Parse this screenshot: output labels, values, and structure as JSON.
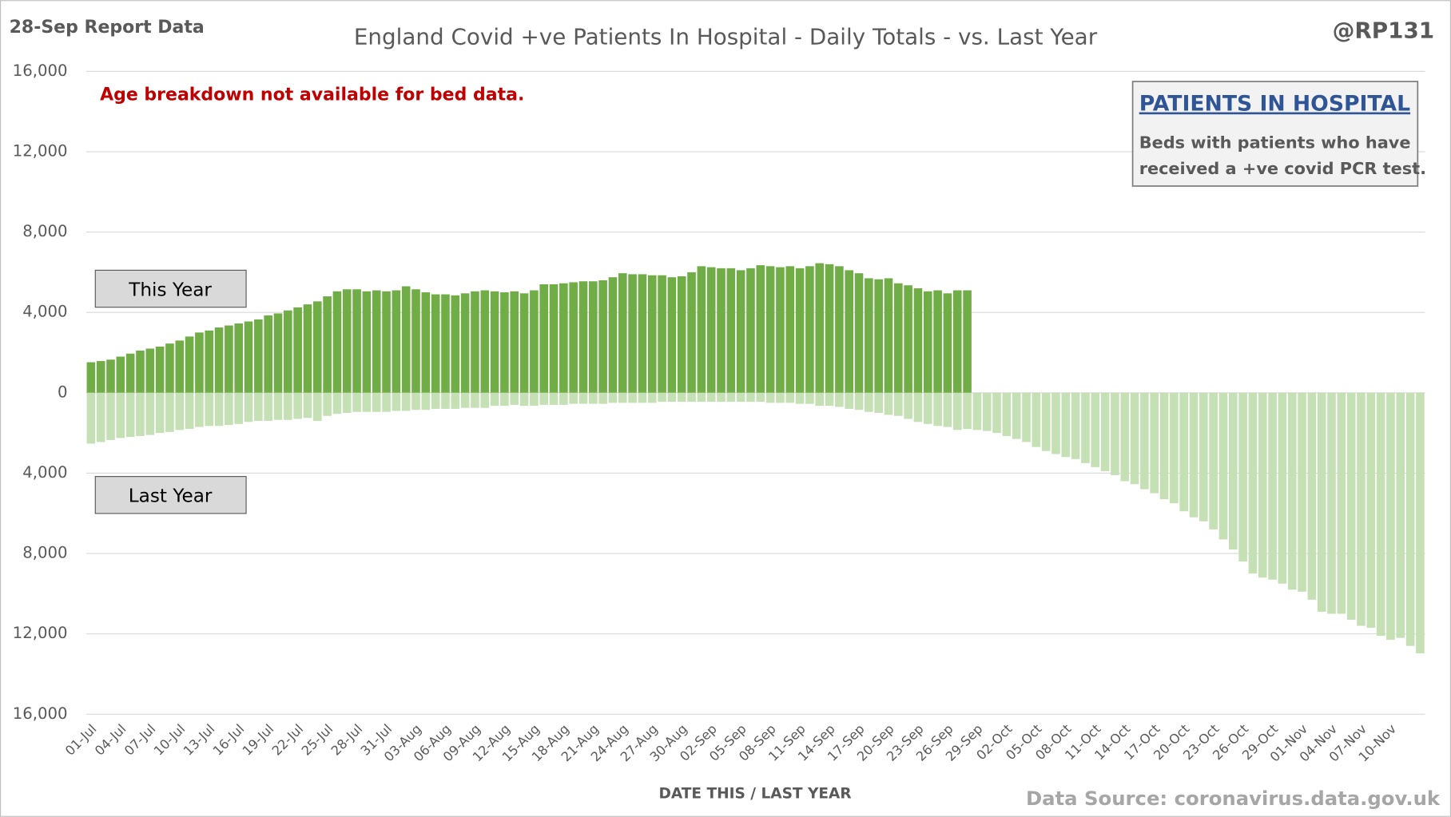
{
  "chart_data": {
    "type": "bar",
    "report_label": "28-Sep Report Data",
    "title": "England Covid +ve Patients In Hospital - Daily Totals - vs. Last Year",
    "handle": "@RP131",
    "annotation": "Age breakdown not available for bed data.",
    "info_box": {
      "heading": "PATIENTS IN HOSPITAL",
      "lines": [
        "Beds with patients who have",
        "received a +ve covid PCR test."
      ]
    },
    "x_label": "DATE THIS / LAST YEAR",
    "source": "Data Source: coronavirus.data.gov.uk",
    "categories": [
      "01-Jul",
      null,
      null,
      "04-Jul",
      null,
      null,
      "07-Jul",
      null,
      null,
      "10-Jul",
      null,
      null,
      "13-Jul",
      null,
      null,
      "16-Jul",
      null,
      null,
      "19-Jul",
      null,
      null,
      "22-Jul",
      null,
      null,
      "25-Jul",
      null,
      null,
      "28-Jul",
      null,
      null,
      "31-Jul",
      null,
      null,
      "03-Aug",
      null,
      null,
      "06-Aug",
      null,
      null,
      "09-Aug",
      null,
      null,
      "12-Aug",
      null,
      null,
      "15-Aug",
      null,
      null,
      "18-Aug",
      null,
      null,
      "21-Aug",
      null,
      null,
      "24-Aug",
      null,
      null,
      "27-Aug",
      null,
      null,
      "30-Aug",
      null,
      null,
      "02-Sep",
      null,
      null,
      "05-Sep",
      null,
      null,
      "08-Sep",
      null,
      null,
      "11-Sep",
      null,
      null,
      "14-Sep",
      null,
      null,
      "17-Sep",
      null,
      null,
      "20-Sep",
      null,
      null,
      "23-Sep",
      null,
      null,
      "26-Sep",
      null,
      null,
      "29-Sep",
      null,
      null,
      "02-Oct",
      null,
      null,
      "05-Oct",
      null,
      null,
      "08-Oct",
      null,
      null,
      "11-Oct",
      null,
      null,
      "14-Oct",
      null,
      null,
      "17-Oct",
      null,
      null,
      "20-Oct",
      null,
      null,
      "23-Oct",
      null,
      null,
      "26-Oct",
      null,
      null,
      "29-Oct",
      null,
      null,
      "01-Nov",
      null,
      null,
      "04-Nov",
      null,
      null,
      "07-Nov",
      null,
      null,
      "10-Nov",
      null,
      null,
      null
    ],
    "series": [
      {
        "name": "This Year",
        "color": "#70ad47",
        "values": [
          1520,
          1580,
          1650,
          1800,
          1950,
          2100,
          2200,
          2300,
          2450,
          2600,
          2800,
          3000,
          3100,
          3250,
          3350,
          3450,
          3550,
          3650,
          3850,
          3950,
          4100,
          4250,
          4400,
          4550,
          4800,
          5050,
          5150,
          5150,
          5050,
          5100,
          5050,
          5100,
          5300,
          5150,
          5000,
          4900,
          4900,
          4850,
          4950,
          5050,
          5100,
          5050,
          5000,
          5050,
          4950,
          5100,
          5400,
          5400,
          5450,
          5500,
          5550,
          5550,
          5600,
          5750,
          5950,
          5900,
          5900,
          5850,
          5850,
          5750,
          5800,
          6000,
          6300,
          6250,
          6200,
          6200,
          6100,
          6200,
          6350,
          6300,
          6250,
          6300,
          6200,
          6300,
          6450,
          6400,
          6300,
          6100,
          5950,
          5700,
          5650,
          5700,
          5450,
          5350,
          5200,
          5050,
          5100,
          4950,
          5100,
          5100,
          null,
          null,
          null,
          null,
          null,
          null,
          null,
          null,
          null,
          null,
          null,
          null,
          null,
          null,
          null,
          null,
          null,
          null,
          null,
          null,
          null,
          null,
          null,
          null,
          null,
          null,
          null,
          null,
          null,
          null,
          null,
          null,
          null,
          null,
          null,
          null,
          null,
          null,
          null,
          null,
          null,
          null,
          null,
          null,
          null,
          null
        ]
      },
      {
        "name": "Last Year",
        "color": "#c5e0b4",
        "values": [
          -2530,
          -2450,
          -2350,
          -2250,
          -2200,
          -2150,
          -2100,
          -2000,
          -1950,
          -1850,
          -1800,
          -1700,
          -1650,
          -1650,
          -1600,
          -1550,
          -1450,
          -1400,
          -1400,
          -1350,
          -1350,
          -1300,
          -1250,
          -1400,
          -1150,
          -1050,
          -1000,
          -950,
          -950,
          -950,
          -950,
          -900,
          -900,
          -850,
          -850,
          -800,
          -800,
          -800,
          -750,
          -750,
          -750,
          -650,
          -650,
          -600,
          -650,
          -650,
          -600,
          -600,
          -600,
          -550,
          -550,
          -550,
          -550,
          -500,
          -500,
          -500,
          -500,
          -500,
          -450,
          -450,
          -450,
          -450,
          -450,
          -450,
          -450,
          -450,
          -450,
          -450,
          -450,
          -500,
          -500,
          -500,
          -550,
          -550,
          -650,
          -650,
          -700,
          -800,
          -850,
          -950,
          -1000,
          -1100,
          -1150,
          -1300,
          -1450,
          -1550,
          -1650,
          -1700,
          -1850,
          -1800,
          -1850,
          -1900,
          -2000,
          -2150,
          -2300,
          -2450,
          -2700,
          -2900,
          -3050,
          -3200,
          -3300,
          -3500,
          -3700,
          -3900,
          -4100,
          -4400,
          -4550,
          -4800,
          -5000,
          -5300,
          -5500,
          -5900,
          -6200,
          -6400,
          -6800,
          -7300,
          -7800,
          -8400,
          -9000,
          -9200,
          -9300,
          -9500,
          -9800,
          -9900,
          -10300,
          -10900,
          -11000,
          -11000,
          -11300,
          -11600,
          -11700,
          -12100,
          -12300,
          -12200,
          -12600,
          -12970
        ]
      }
    ],
    "ylim": [
      -16000,
      16000
    ],
    "yticks": [
      {
        "value": 16000,
        "label": "16,000"
      },
      {
        "value": 12000,
        "label": "12,000"
      },
      {
        "value": 8000,
        "label": "8,000"
      },
      {
        "value": 4000,
        "label": "4,000"
      },
      0,
      {
        "value": -4000,
        "label": "4,000"
      },
      {
        "value": -8000,
        "label": "8,000"
      },
      {
        "value": -12000,
        "label": "12,000"
      },
      {
        "value": -16000,
        "label": "16,000"
      }
    ],
    "grid": true
  }
}
